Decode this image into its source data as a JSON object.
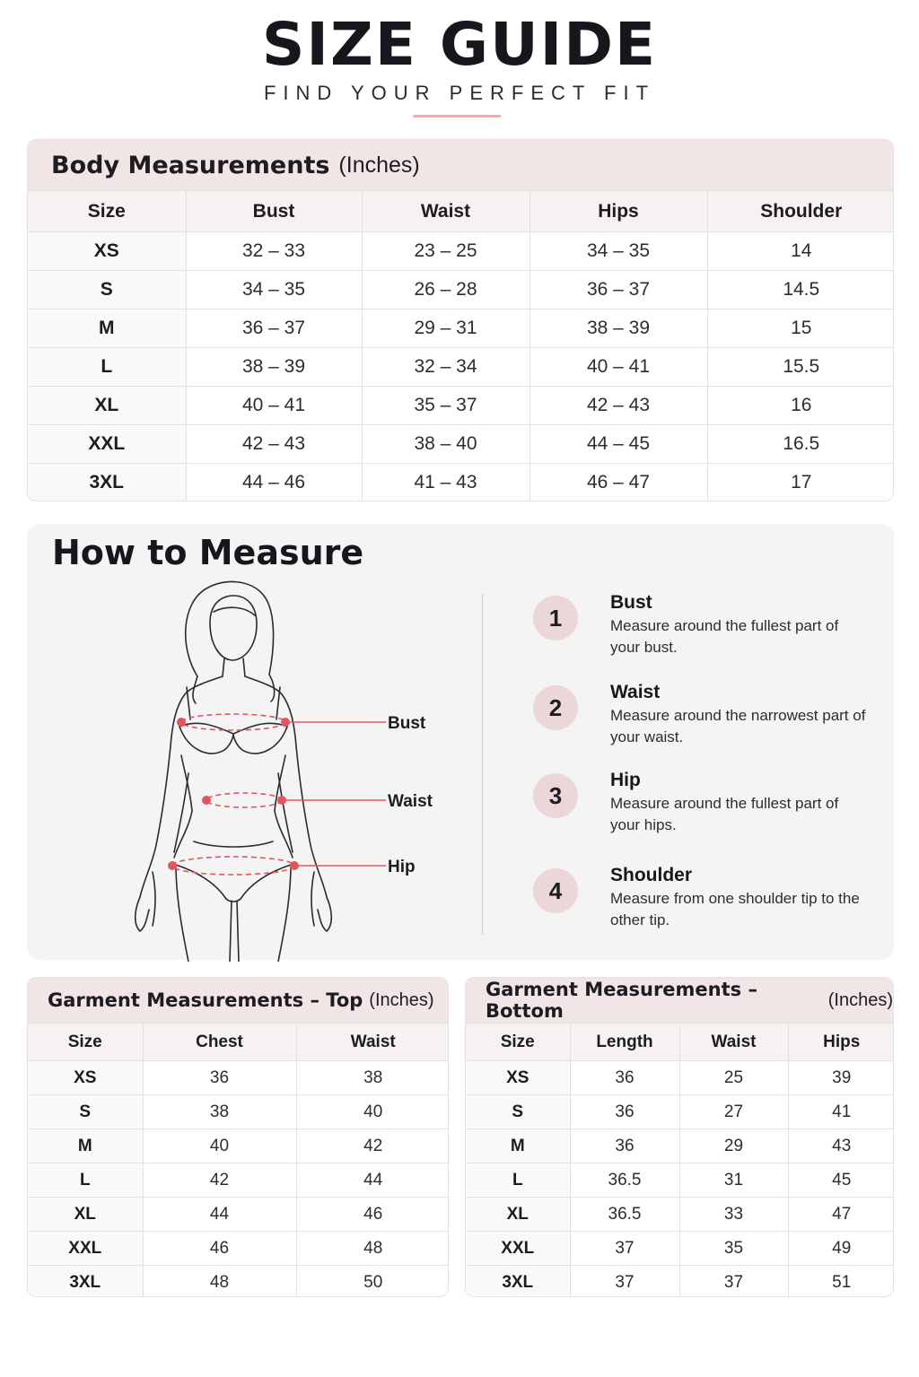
{
  "header": {
    "title": "SIZE GUIDE",
    "subtitle": "FIND YOUR PERFECT FIT"
  },
  "body_measurements": {
    "title": "Body Measurements",
    "unit": "(Inches)",
    "columns": [
      "Size",
      "Bust",
      "Waist",
      "Hips",
      "Shoulder"
    ],
    "rows": [
      [
        "XS",
        "32 – 33",
        "23 – 25",
        "34 – 35",
        "14"
      ],
      [
        "S",
        "34 – 35",
        "26 – 28",
        "36 – 37",
        "14.5"
      ],
      [
        "M",
        "36 – 37",
        "29 – 31",
        "38 – 39",
        "15"
      ],
      [
        "L",
        "38 – 39",
        "32 – 34",
        "40 – 41",
        "15.5"
      ],
      [
        "XL",
        "40 – 41",
        "35 – 37",
        "42 – 43",
        "16"
      ],
      [
        "XXL",
        "42 – 43",
        "38 – 40",
        "44 – 45",
        "16.5"
      ],
      [
        "3XL",
        "44 – 46",
        "41 – 43",
        "46 – 47",
        "17"
      ]
    ]
  },
  "how_to_measure": {
    "title": "How to Measure",
    "figure_labels": [
      "Bust",
      "Waist",
      "Hip"
    ],
    "steps": [
      {
        "num": "1",
        "name": "Bust",
        "desc": "Measure around the fullest part of your bust."
      },
      {
        "num": "2",
        "name": "Waist",
        "desc": "Measure around the narrowest part of your waist."
      },
      {
        "num": "3",
        "name": "Hip",
        "desc": "Measure around the fullest part of your hips."
      },
      {
        "num": "4",
        "name": "Shoulder",
        "desc": "Measure from one shoulder tip to the other tip."
      }
    ]
  },
  "garment_top": {
    "title": "Garment Measurements – Top",
    "unit": "(Inches)",
    "columns": [
      "Size",
      "Chest",
      "Waist"
    ],
    "rows": [
      [
        "XS",
        "36",
        "38"
      ],
      [
        "S",
        "38",
        "40"
      ],
      [
        "M",
        "40",
        "42"
      ],
      [
        "L",
        "42",
        "44"
      ],
      [
        "XL",
        "44",
        "46"
      ],
      [
        "XXL",
        "46",
        "48"
      ],
      [
        "3XL",
        "48",
        "50"
      ]
    ]
  },
  "garment_bottom": {
    "title": "Garment Measurements – Bottom",
    "unit": "(Inches)",
    "columns": [
      "Size",
      "Length",
      "Waist",
      "Hips"
    ],
    "rows": [
      [
        "XS",
        "36",
        "25",
        "39"
      ],
      [
        "S",
        "36",
        "27",
        "41"
      ],
      [
        "M",
        "36",
        "29",
        "43"
      ],
      [
        "L",
        "36.5",
        "31",
        "45"
      ],
      [
        "XL",
        "36.5",
        "33",
        "47"
      ],
      [
        "XXL",
        "37",
        "35",
        "49"
      ],
      [
        "3XL",
        "37",
        "37",
        "51"
      ]
    ]
  },
  "colors": {
    "accent": "#e8aeb6",
    "card_header": "#f1e5e5",
    "step_circle": "#ecd7d8",
    "measure_line": "#e0575f"
  }
}
